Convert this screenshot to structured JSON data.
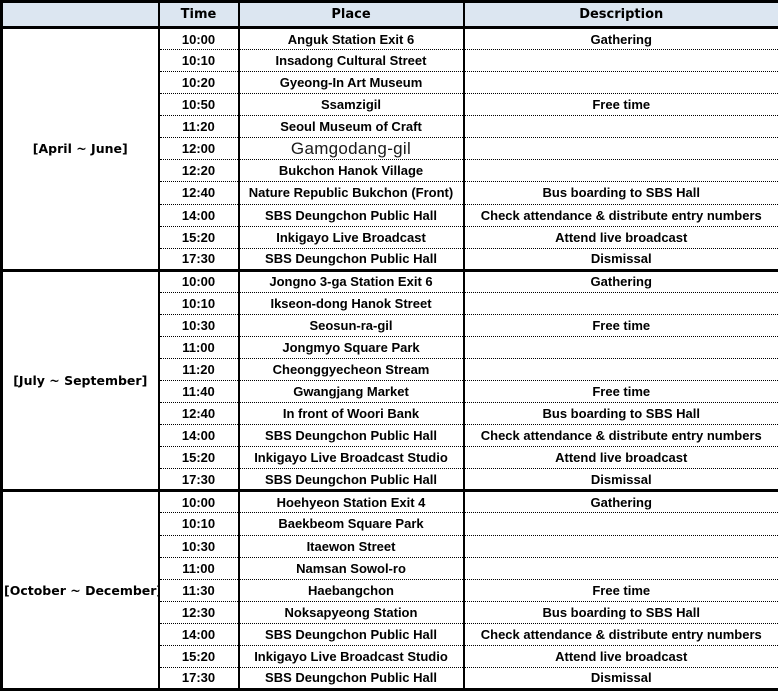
{
  "table": {
    "columns": [
      "",
      "Time",
      "Place",
      "Description"
    ],
    "colors": {
      "header_bg": "#dce6f1",
      "border": "#000000",
      "background": "#ffffff",
      "text": "#000000"
    },
    "groups": [
      {
        "label": "[April ~ June]",
        "rows": [
          {
            "time": "10:00",
            "place": "Anguk Station Exit 6",
            "description": "Gathering"
          },
          {
            "time": "10:10",
            "place": "Insadong Cultural Street",
            "description": ""
          },
          {
            "time": "10:20",
            "place": "Gyeong-In Art Museum",
            "description": ""
          },
          {
            "time": "10:50",
            "place": "Ssamzigil",
            "description": "Free time"
          },
          {
            "time": "11:20",
            "place": "Seoul Museum of Craft",
            "description": ""
          },
          {
            "time": "12:00",
            "place": "Gamgodang-gil",
            "description": "",
            "place_style": "light"
          },
          {
            "time": "12:20",
            "place": "Bukchon Hanok Village",
            "description": ""
          },
          {
            "time": "12:40",
            "place": "Nature Republic Bukchon (Front)",
            "description": "Bus boarding to SBS Hall"
          },
          {
            "time": "14:00",
            "place": "SBS Deungchon Public Hall",
            "description": "Check attendance & distribute entry numbers"
          },
          {
            "time": "15:20",
            "place": "Inkigayo Live Broadcast",
            "description": "Attend live broadcast"
          },
          {
            "time": "17:30",
            "place": "SBS Deungchon Public Hall",
            "description": "Dismissal"
          }
        ]
      },
      {
        "label": "[July ~ September]",
        "rows": [
          {
            "time": "10:00",
            "place": "Jongno 3-ga Station Exit 6",
            "description": "Gathering"
          },
          {
            "time": "10:10",
            "place": "Ikseon-dong Hanok Street",
            "description": ""
          },
          {
            "time": "10:30",
            "place": "Seosun-ra-gil",
            "description": "Free time"
          },
          {
            "time": "11:00",
            "place": "Jongmyo Square Park",
            "description": ""
          },
          {
            "time": "11:20",
            "place": "Cheonggyecheon Stream",
            "description": ""
          },
          {
            "time": "11:40",
            "place": "Gwangjang Market",
            "description": "Free time"
          },
          {
            "time": "12:40",
            "place": "In front of Woori Bank",
            "description": "Bus boarding to SBS Hall"
          },
          {
            "time": "14:00",
            "place": "SBS Deungchon Public Hall",
            "description": "Check attendance & distribute entry numbers"
          },
          {
            "time": "15:20",
            "place": "Inkigayo Live Broadcast Studio",
            "description": "Attend live broadcast"
          },
          {
            "time": "17:30",
            "place": "SBS Deungchon Public Hall",
            "description": "Dismissal"
          }
        ]
      },
      {
        "label": "[October ~ December]",
        "rows": [
          {
            "time": "10:00",
            "place": "Hoehyeon Station Exit 4",
            "description": "Gathering"
          },
          {
            "time": "10:10",
            "place": "Baekbeom Square Park",
            "description": ""
          },
          {
            "time": "10:30",
            "place": "Itaewon Street",
            "description": ""
          },
          {
            "time": "11:00",
            "place": "Namsan Sowol-ro",
            "description": ""
          },
          {
            "time": "11:30",
            "place": "Haebangchon",
            "description": "Free time"
          },
          {
            "time": "12:30",
            "place": "Noksapyeong Station",
            "description": "Bus boarding to SBS Hall"
          },
          {
            "time": "14:00",
            "place": "SBS Deungchon Public Hall",
            "description": "Check attendance & distribute entry numbers"
          },
          {
            "time": "15:20",
            "place": "Inkigayo Live Broadcast Studio",
            "description": "Attend live broadcast"
          },
          {
            "time": "17:30",
            "place": "SBS Deungchon Public Hall",
            "description": "Dismissal"
          }
        ]
      }
    ]
  }
}
